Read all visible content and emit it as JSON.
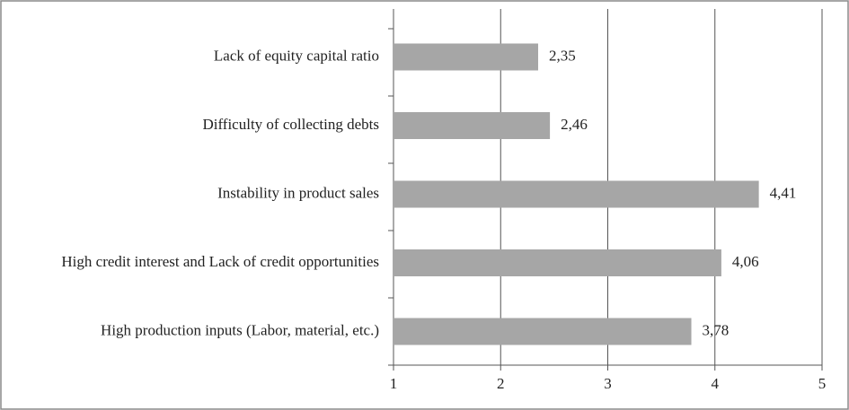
{
  "chart_data": {
    "type": "bar",
    "orientation": "horizontal",
    "categories": [
      "Lack of equity capital ratio",
      "Difficulty of collecting debts",
      "Instability in product sales",
      "High credit interest and Lack of credit opportunities",
      "High production inputs (Labor, material, etc.)"
    ],
    "values": [
      2.35,
      2.46,
      4.41,
      4.06,
      3.78
    ],
    "value_labels": [
      "2,35",
      "2,46",
      "4,41",
      "4,06",
      "3,78"
    ],
    "color": "#a6a6a6",
    "xlim": [
      1,
      5
    ],
    "xticks": [
      1,
      2,
      3,
      4,
      5
    ],
    "grid": true
  }
}
